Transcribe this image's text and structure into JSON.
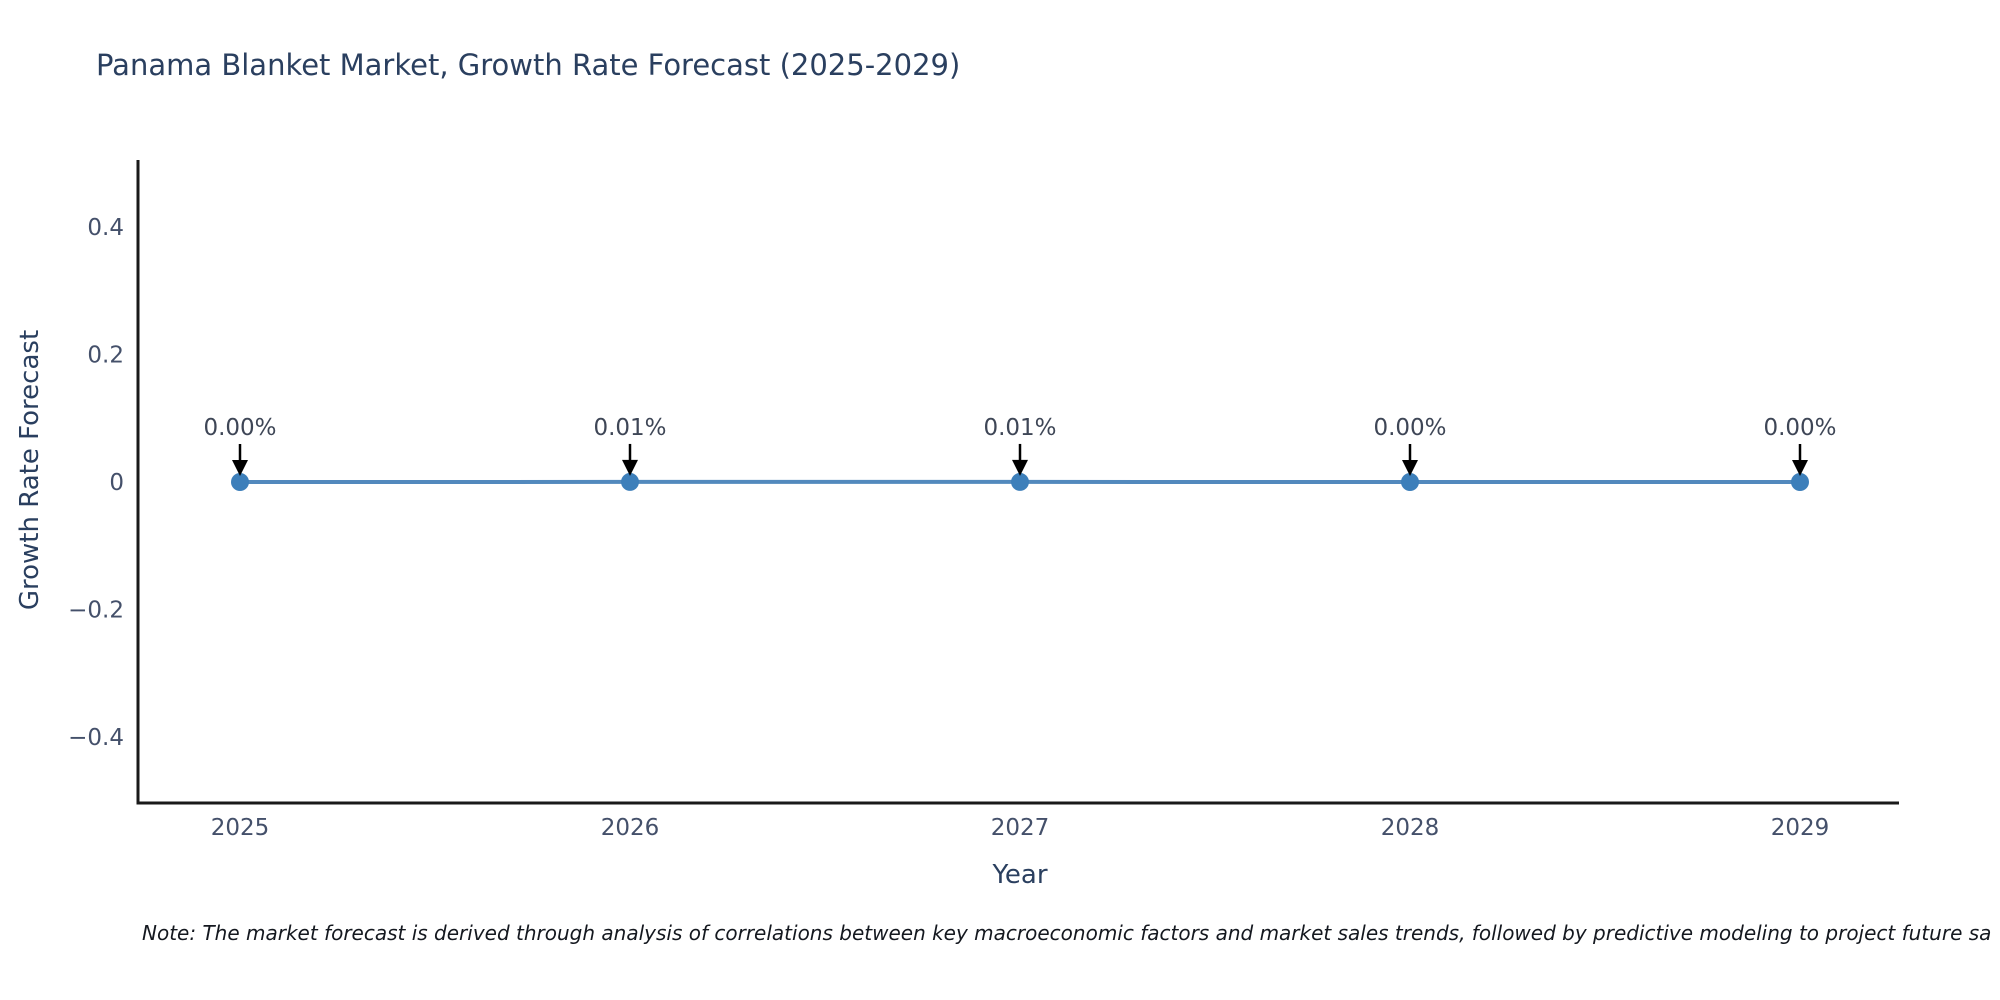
{
  "page": {
    "background": "#ffffff"
  },
  "chart_data": {
    "type": "line",
    "title": "Panama Blanket Market, Growth Rate Forecast (2025-2029)",
    "xlabel": "Year",
    "ylabel": "Growth Rate Forecast",
    "x": [
      2025,
      2026,
      2027,
      2028,
      2029
    ],
    "series": [
      {
        "name": "Growth Rate Forecast",
        "values": [
          0.0,
          0.0001,
          0.0001,
          0.0,
          0.0
        ],
        "point_labels": [
          "0.00%",
          "0.01%",
          "0.01%",
          "0.00%",
          "0.00%"
        ]
      }
    ],
    "xticks": [
      "2025",
      "2026",
      "2027",
      "2028",
      "2029"
    ],
    "yticks": [
      {
        "v": 0.4,
        "label": "0.4"
      },
      {
        "v": 0.2,
        "label": "0.2"
      },
      {
        "v": 0,
        "label": "0"
      },
      {
        "v": -0.2,
        "label": "−0.2"
      },
      {
        "v": -0.4,
        "label": "−0.4"
      }
    ],
    "ylim": [
      -0.505,
      0.505
    ],
    "grid": false,
    "legend": "none",
    "colors": {
      "line": "#5289bd",
      "marker": "#3d7fba",
      "axis_line": "#1a1a1a",
      "title_text": "#2a3f5f",
      "tick_text": "#44506a",
      "annotation_text": "#3e4656",
      "annotation_arrow": "#000000",
      "background": "#ffffff"
    }
  },
  "note": {
    "text": "Note: The market forecast is derived through analysis of correlations between key macroeconomic factors and market sales trends, followed by predictive modeling to project future sa"
  }
}
